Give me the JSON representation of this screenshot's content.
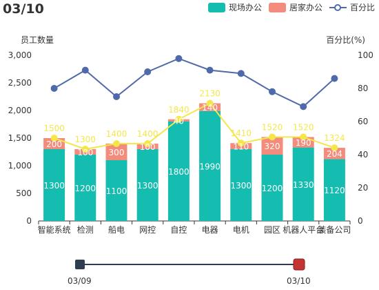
{
  "header": {
    "title": "03/10"
  },
  "chart_data": {
    "type": "bar",
    "stacked": true,
    "categories": [
      "智能系统",
      "检测",
      "船电",
      "网控",
      "自控",
      "电器",
      "电机",
      "园区",
      "机器人平台",
      "装备公司"
    ],
    "series": [
      {
        "name": "现场办公",
        "type": "bar",
        "axis": "left",
        "color": "#14BDB0",
        "values": [
          1300,
          1200,
          1100,
          1300,
          1800,
          1990,
          1300,
          1200,
          1330,
          1120
        ]
      },
      {
        "name": "居家办公",
        "type": "bar",
        "axis": "left",
        "color": "#F48C7D",
        "values": [
          200,
          100,
          300,
          100,
          40,
          140,
          110,
          320,
          190,
          204
        ]
      },
      {
        "name": "百分比",
        "type": "line",
        "axis": "right",
        "color": "#4F6AA8",
        "values": [
          80,
          91,
          75,
          90,
          98,
          91,
          89,
          78,
          69,
          86
        ]
      },
      {
        "type": "line",
        "axis": "left",
        "color": "#F5E64A",
        "values": [
          1500,
          1300,
          1400,
          1400,
          1840,
          2130,
          1410,
          1520,
          1520,
          1324
        ]
      }
    ],
    "ylabel": "员工数量",
    "y2label": "百分比(%)",
    "ylim": [
      0,
      3000
    ],
    "yticks": [
      "0",
      "500",
      "1,000",
      "1,500",
      "2,000",
      "2,500",
      "3,000"
    ],
    "y2lim": [
      0,
      100
    ],
    "y2ticks": [
      "0",
      "20",
      "40",
      "60",
      "80",
      "100"
    ],
    "grid": false,
    "legend_position": "top-right"
  },
  "timeline": {
    "labels": [
      "03/09",
      "03/10"
    ],
    "current": "03/10"
  }
}
